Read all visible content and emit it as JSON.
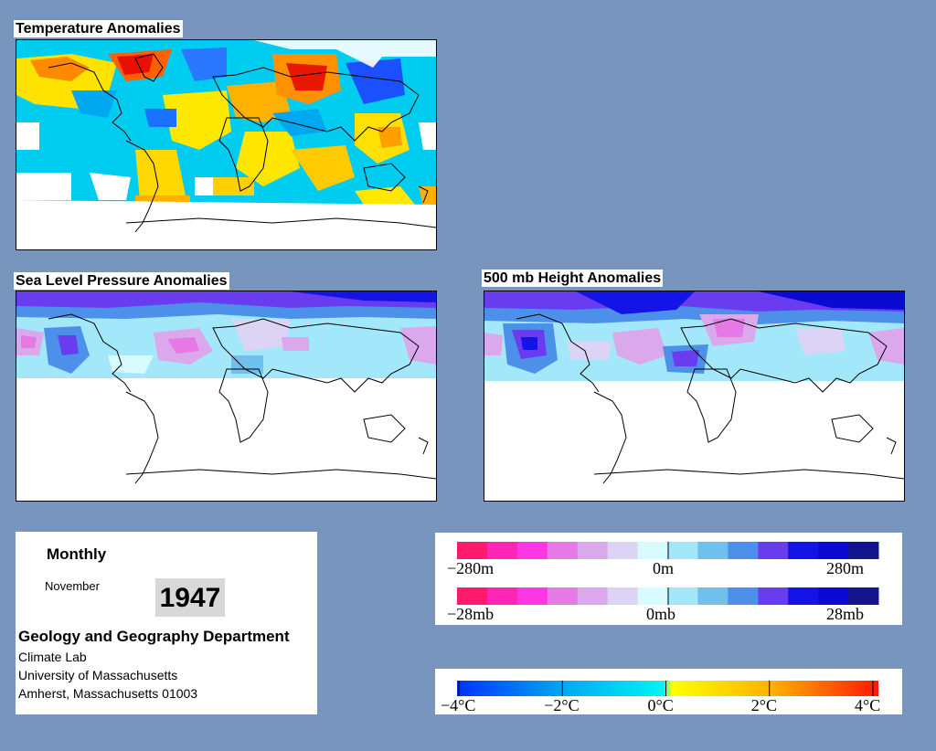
{
  "panels": {
    "temperature": {
      "title": "Temperature Anomalies"
    },
    "slp": {
      "title": "Sea Level Pressure Anomalies"
    },
    "height500": {
      "title": "500 mb Height Anomalies"
    }
  },
  "info": {
    "period": "Monthly",
    "month": "November",
    "year": "1947",
    "department": "Geology and Geography Department",
    "lab": "Climate Lab",
    "university": "University of Massachusetts",
    "address": "Amherst, Massachusetts 01003"
  },
  "legends": {
    "height": {
      "min": "−280m",
      "mid": "0m",
      "max": "280m"
    },
    "pressure": {
      "min": "−28mb",
      "mid": "0mb",
      "max": "28mb"
    },
    "temperature": {
      "ticks": [
        "−4°C",
        "−2°C",
        "0°C",
        "2°C",
        "4°C"
      ]
    }
  },
  "colors": {
    "background": "#7896bd",
    "anomaly_scale": [
      "#ff1a6e",
      "#ff26b6",
      "#ff36e4",
      "#e57ae6",
      "#dca8ec",
      "#dcd4f4",
      "#d8fbff",
      "#a2e8fa",
      "#70c0ee",
      "#4c90ea",
      "#6a3cf0",
      "#1414e6",
      "#0a0ad2",
      "#14148c"
    ],
    "temp_scale": [
      "#0040ff",
      "#00b4f0",
      "#00f0f0",
      "#ffff00",
      "#ffb400",
      "#ff2000"
    ]
  }
}
